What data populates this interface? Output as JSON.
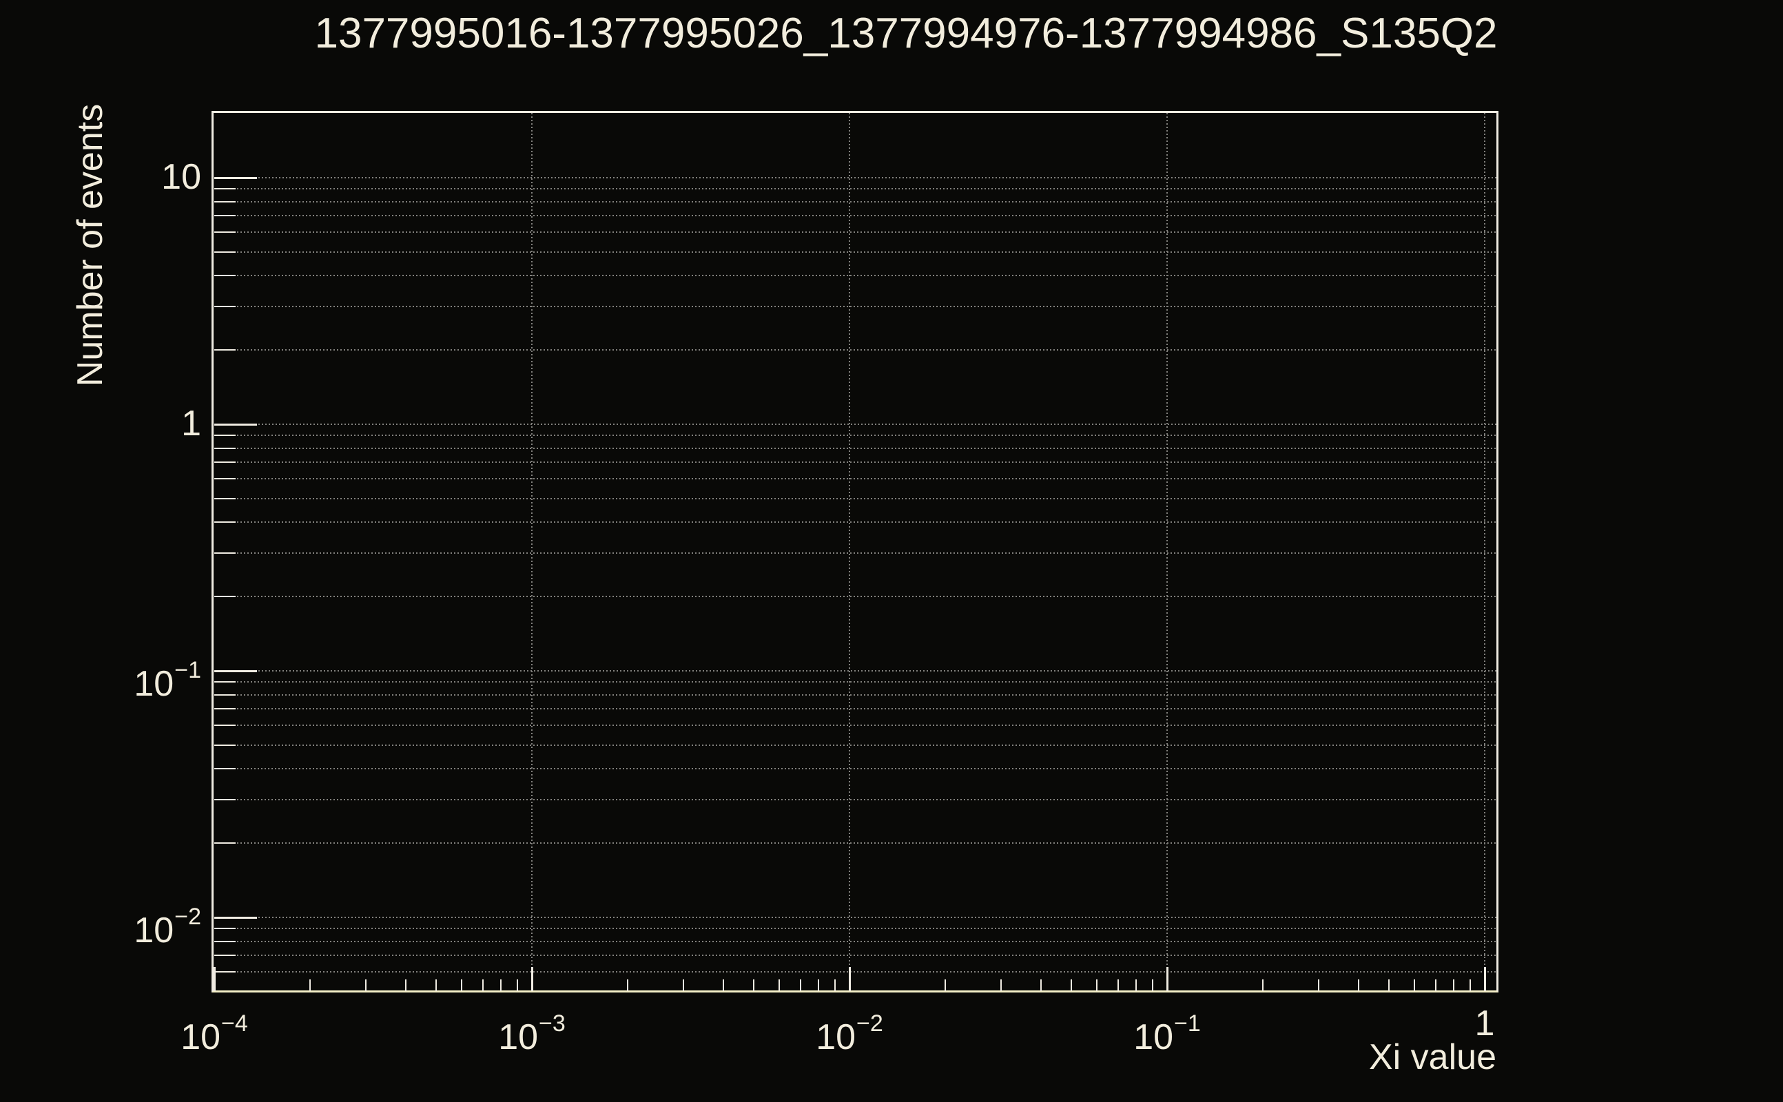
{
  "page": {
    "background": "#090907"
  },
  "colors": {
    "foreground": "#F2EDDD",
    "frame": "#F0ECE2",
    "x_axis_line": "#F5F0C8",
    "grid": "#82817D"
  },
  "chart_data": {
    "type": "histogram",
    "title": "1377995016-1377995026_1377994976-1377994986_S135Q2",
    "xlabel": "Xi value",
    "ylabel": "Number of events",
    "xscale": "log",
    "yscale": "log",
    "xlim": [
      0.0001,
      1.09
    ],
    "ylim": [
      0.005,
      18.5
    ],
    "grid": true,
    "grid_horizontal": "all-ticks",
    "grid_vertical": "major-ticks",
    "legend": "none",
    "series": [],
    "x_ticks": [
      {
        "value": 0.0001,
        "base": "10",
        "exp": "−4"
      },
      {
        "value": 0.001,
        "base": "10",
        "exp": "−3"
      },
      {
        "value": 0.01,
        "base": "10",
        "exp": "−2"
      },
      {
        "value": 0.1,
        "base": "10",
        "exp": "−1"
      },
      {
        "value": 1,
        "base": "1",
        "exp": ""
      }
    ],
    "y_ticks": [
      {
        "value": 10,
        "base": "10",
        "exp": ""
      },
      {
        "value": 1,
        "base": "1",
        "exp": ""
      },
      {
        "value": 0.1,
        "base": "10",
        "exp": "−1"
      },
      {
        "value": 0.01,
        "base": "10",
        "exp": "−2"
      }
    ]
  }
}
